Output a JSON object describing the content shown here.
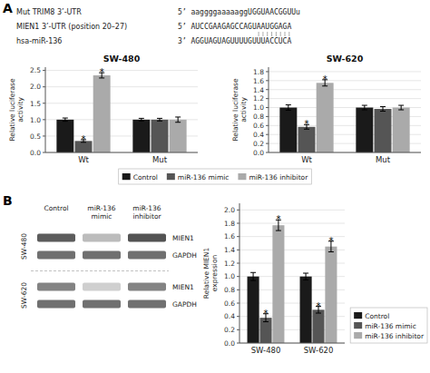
{
  "chart_data": [
    {
      "type": "bar",
      "panel": "A",
      "title": "SW-480",
      "y_label": "Relative luciferase\nactivity",
      "header": [
        {
          "label": "Mut TRIM8 3’-UTR",
          "sequence": "5’ aaggggaaaaaggUGGUAACGGUUu"
        },
        {
          "label": "MIEN1 3’-UTR (position 20–27)",
          "sequence": "5’ AUCCGAAGAGCCAGUAAUGGAGA"
        },
        {
          "label": "hsa-miR-136",
          "sequence": "3’ AGGUAGUAGUUUUGUUUACCUCA"
        }
      ],
      "categories": [
        "Wt",
        "Mut"
      ],
      "series": [
        {
          "name": "Control",
          "color": "#1a1a1a",
          "values": [
            1.0,
            1.0
          ],
          "errors": [
            0.05,
            0.04
          ]
        },
        {
          "name": "miR-136 mimic",
          "color": "#555555",
          "values": [
            0.35,
            1.0
          ],
          "errors": [
            0.04,
            0.04
          ],
          "annotations": [
            "*",
            null
          ]
        },
        {
          "name": "miR-136 inhibitor",
          "color": "#aaaaaa",
          "values": [
            2.35,
            1.0
          ],
          "errors": [
            0.08,
            0.08
          ],
          "annotations": [
            "*",
            null
          ]
        }
      ],
      "ylim": [
        0,
        2.6
      ],
      "yticks": [
        {
          "value": 0.0,
          "label": "0.0"
        },
        {
          "value": 0.5,
          "label": "0.5"
        },
        {
          "value": 1.0,
          "label": "1.0"
        },
        {
          "value": 1.5,
          "label": "1.5"
        },
        {
          "value": 2.0,
          "label": "2.0"
        },
        {
          "value": 2.5,
          "label": "2.5"
        }
      ],
      "legend": "bottom"
    },
    {
      "type": "bar",
      "title": "SW-620",
      "y_label": "Relative luciferase\nactivity",
      "categories": [
        "Wt",
        "Mut"
      ],
      "series": [
        {
          "name": "Control",
          "color": "#1a1a1a",
          "values": [
            1.0,
            1.0
          ],
          "errors": [
            0.06,
            0.05
          ]
        },
        {
          "name": "miR-136 mimic",
          "color": "#555555",
          "values": [
            0.57,
            0.97
          ],
          "errors": [
            0.05,
            0.05
          ],
          "annotations": [
            "*",
            null
          ]
        },
        {
          "name": "miR-136 inhibitor",
          "color": "#aaaaaa",
          "values": [
            1.55,
            1.0
          ],
          "errors": [
            0.07,
            0.05
          ],
          "annotations": [
            "*",
            null
          ]
        }
      ],
      "ylim": [
        0,
        1.9
      ],
      "yticks": [
        {
          "value": 0.0,
          "label": "0.0"
        },
        {
          "value": 0.2,
          "label": "0.2"
        },
        {
          "value": 0.4,
          "label": "0.4"
        },
        {
          "value": 0.6,
          "label": "0.6"
        },
        {
          "value": 0.8,
          "label": "0.8"
        },
        {
          "value": 1.0,
          "label": "1.0"
        },
        {
          "value": 1.2,
          "label": "1.2"
        },
        {
          "value": 1.4,
          "label": "1.4"
        },
        {
          "value": 1.6,
          "label": "1.6"
        },
        {
          "value": 1.8,
          "label": "1.8"
        }
      ]
    },
    {
      "type": "bar",
      "panel": "B",
      "y_label": "Relative MIEN1\nexpression",
      "blot": {
        "columns": [
          "Control",
          "miR-136\nmimic",
          "miR-136\ninhibitor"
        ],
        "rows": [
          "MIEN1",
          "GAPDH",
          "MIEN1",
          "GAPDH"
        ],
        "cell_lines": [
          "SW-480",
          "SW-620"
        ],
        "intensity": [
          [
            0.85,
            0.35,
            0.9
          ],
          [
            0.75,
            0.75,
            0.75
          ],
          [
            0.65,
            0.25,
            0.65
          ],
          [
            0.75,
            0.75,
            0.75
          ]
        ]
      },
      "categories": [
        "SW-480",
        "SW-620"
      ],
      "series": [
        {
          "name": "Control",
          "color": "#1a1a1a",
          "values": [
            1.0,
            1.0
          ],
          "errors": [
            0.06,
            0.05
          ]
        },
        {
          "name": "miR-136 mimic",
          "color": "#555555",
          "values": [
            0.38,
            0.5
          ],
          "errors": [
            0.06,
            0.05
          ],
          "annotations": [
            "*",
            "*"
          ]
        },
        {
          "name": "miR-136 inhibitor",
          "color": "#aaaaaa",
          "values": [
            1.77,
            1.45
          ],
          "errors": [
            0.08,
            0.08
          ],
          "annotations": [
            "*",
            "*"
          ]
        }
      ],
      "ylim": [
        0,
        2.1
      ],
      "yticks": [
        {
          "value": 0.0,
          "label": "0.0"
        },
        {
          "value": 0.2,
          "label": "0.2"
        },
        {
          "value": 0.4,
          "label": "0.4"
        },
        {
          "value": 0.6,
          "label": "0.6"
        },
        {
          "value": 0.8,
          "label": "0.8"
        },
        {
          "value": 1.0,
          "label": "1.0"
        },
        {
          "value": 1.2,
          "label": "1.2"
        },
        {
          "value": 1.4,
          "label": "1.4"
        },
        {
          "value": 1.6,
          "label": "1.6"
        },
        {
          "value": 1.8,
          "label": "1.8"
        },
        {
          "value": 2.0,
          "label": "2.0"
        }
      ],
      "legend": "lower right"
    }
  ]
}
